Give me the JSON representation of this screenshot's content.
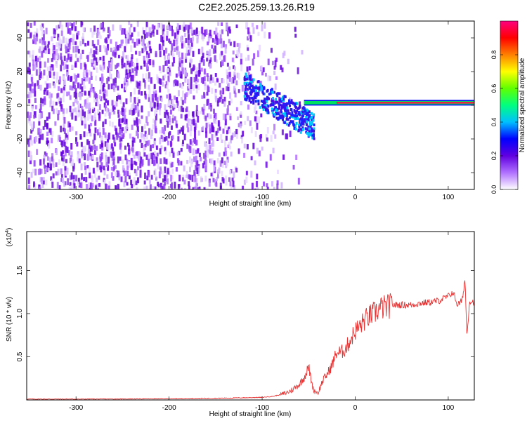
{
  "title": "C2E2.2025.259.13.26.R19",
  "chart_data": [
    {
      "type": "heatmap",
      "xlabel": "Height of straight line (km)",
      "ylabel": "Frequency (Hz)",
      "xlim": [
        -353,
        128
      ],
      "ylim": [
        -50,
        50
      ],
      "xticks": [
        -300,
        -200,
        -100,
        0,
        100
      ],
      "yticks": [
        -40,
        -20,
        0,
        20,
        40
      ],
      "tone_frequency_hz": 1.5,
      "colorbar": {
        "label": "Normalized spectral amplitude",
        "range": [
          0,
          1
        ],
        "ticks": [
          "0.0",
          "0.2",
          "0.4",
          "0.6",
          "0.8"
        ],
        "colors": [
          "#ffffff",
          "#b070ff",
          "#6000e0",
          "#0000ff",
          "#00c0ff",
          "#00ff80",
          "#60ff00",
          "#ffff00",
          "#ff8000",
          "#ff0000",
          "#ff0080"
        ]
      }
    },
    {
      "type": "line",
      "xlabel": "Height of straight line (km)",
      "ylabel": "SNR (10 * v/v)",
      "multiplier": "(x10",
      "multiplier_exp": "4",
      "multiplier_close": ")",
      "xlim": [
        -353,
        128
      ],
      "ylim": [
        0,
        1.95
      ],
      "xticks": [
        -300,
        -200,
        -100,
        0,
        100
      ],
      "yticks": [
        "0.5",
        "1.0",
        "1.5"
      ],
      "color": "#e83030",
      "x": [
        -353,
        -300,
        -250,
        -200,
        -150,
        -120,
        -100,
        -90,
        -80,
        -70,
        -60,
        -55,
        -50,
        -45,
        -40,
        -35,
        -30,
        -25,
        -20,
        -15,
        -10,
        -5,
        0,
        5,
        10,
        15,
        20,
        25,
        30,
        35,
        40,
        50,
        60,
        70,
        80,
        90,
        100,
        105,
        110,
        115,
        118,
        120,
        123,
        128
      ],
      "y": [
        0.01,
        0.01,
        0.012,
        0.015,
        0.02,
        0.025,
        0.03,
        0.04,
        0.06,
        0.1,
        0.18,
        0.26,
        0.38,
        0.12,
        0.08,
        0.22,
        0.3,
        0.4,
        0.55,
        0.55,
        0.6,
        0.7,
        0.8,
        0.85,
        0.92,
        0.97,
        1.0,
        1.05,
        1.07,
        1.08,
        1.1,
        1.1,
        1.1,
        1.12,
        1.13,
        1.15,
        1.2,
        1.25,
        1.1,
        1.15,
        1.4,
        0.75,
        1.15,
        1.13
      ]
    }
  ]
}
